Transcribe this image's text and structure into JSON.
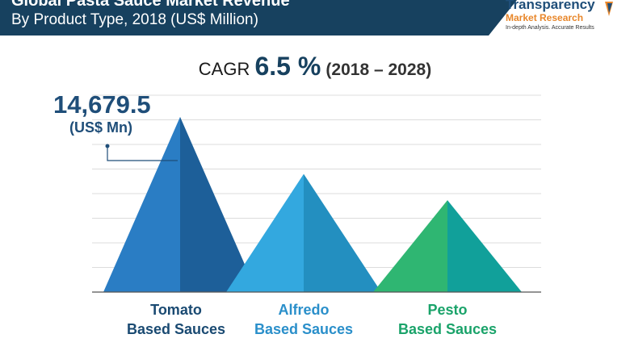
{
  "header": {
    "title_line1": "Global Pasta Sauce Market Revenue",
    "title_line2": "By Product Type, 2018 (US$ Million)"
  },
  "logo": {
    "line1": "Transparency",
    "line2": "Market Research",
    "tagline": "In-depth Analysis. Accurate Results"
  },
  "cagr": {
    "label": "CAGR",
    "value": "6.5 %",
    "period": "(2018 – 2028)"
  },
  "callout": {
    "value": "14,679.5",
    "unit": "(US$ Mn)"
  },
  "chart_data": {
    "type": "bar",
    "title": "Global Pasta Sauce Market Revenue",
    "subtitle": "By Product Type, 2018 (US$ Million)",
    "categories": [
      "Tomato Based Sauces",
      "Alfredo Based Sauces",
      "Pesto Based Sauces"
    ],
    "category_lines": [
      [
        "Tomato",
        "Based Sauces"
      ],
      [
        "Alfredo",
        "Based Sauces"
      ],
      [
        "Pesto",
        "Based Sauces"
      ]
    ],
    "values": [
      14679.5,
      9900,
      7700
    ],
    "ylim": [
      0,
      16500
    ],
    "grid": true,
    "colors": [
      {
        "light": "#2a7dc4",
        "dark": "#1d5f99",
        "label": "#1a4a72"
      },
      {
        "light": "#33a8df",
        "dark": "#238fc0",
        "label": "#2a8fca"
      },
      {
        "light": "#2fb672",
        "dark": "#11a09a",
        "label": "#1aa36a"
      }
    ]
  }
}
